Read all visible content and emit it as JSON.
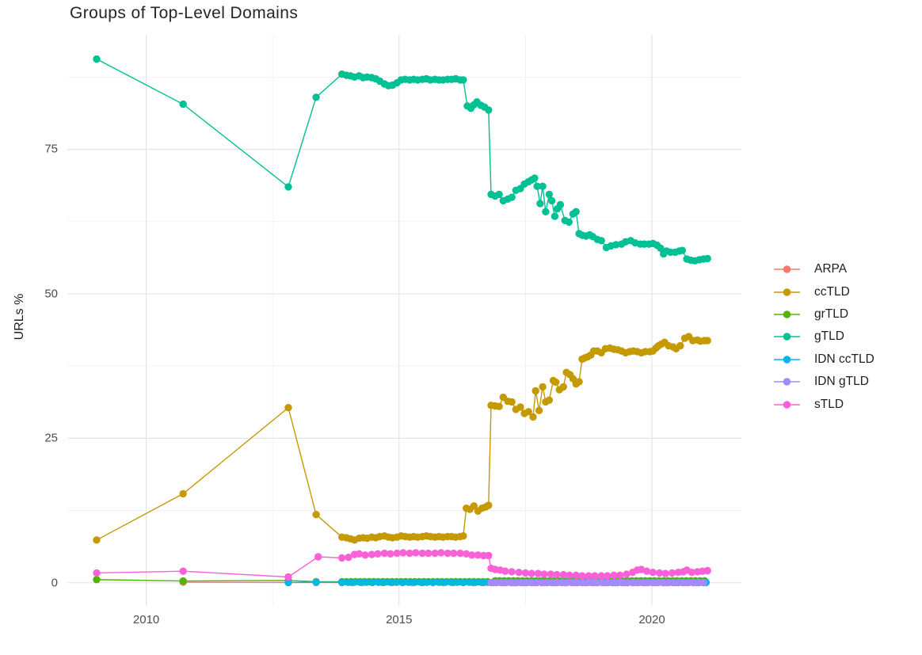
{
  "chart": {
    "title": "Groups of Top-Level Domains",
    "ylabel": "URLs %"
  },
  "chart_data": {
    "type": "line",
    "title": "Groups of Top-Level Domains",
    "xlabel": "",
    "ylabel": "URLs %",
    "grid": true,
    "legend_position": "right",
    "background": "#ffffff",
    "grid_major_color": "#e4e4e4",
    "grid_minor_color": "#f0f0f0",
    "x_axis": {
      "range": [
        2008.44,
        2021.77
      ],
      "ticks": [
        2010,
        2015,
        2020
      ],
      "tick_labels": [
        "2010",
        "2015",
        "2020"
      ],
      "minor_ticks": [
        2012.5,
        2017.5
      ]
    },
    "y_axis": {
      "range": [
        -4,
        94.8
      ],
      "ticks": [
        0,
        25,
        50,
        75
      ],
      "tick_labels": [
        "0",
        "25",
        "50",
        "75"
      ],
      "minor_ticks": [
        12.5,
        37.5,
        62.5,
        87.5
      ]
    },
    "series": [
      {
        "name": "ARPA",
        "color": "#F8766D",
        "points": [
          [
            2010.73,
            0.1
          ],
          [
            2012.81,
            0.06
          ],
          [
            2013.36,
            0.05
          ]
        ],
        "runs": [
          {
            "from": 2013.87,
            "to": 2021.1,
            "step": 0.2,
            "value": 0.04
          }
        ]
      },
      {
        "name": "ccTLD",
        "color": "#C49A00",
        "points": [
          [
            2009.02,
            7.4
          ],
          [
            2010.73,
            15.4
          ],
          [
            2012.81,
            30.3
          ],
          [
            2013.36,
            11.8
          ],
          [
            2013.87,
            7.9
          ],
          [
            2013.96,
            7.8
          ],
          [
            2014.04,
            7.6
          ],
          [
            2014.12,
            7.4
          ],
          [
            2014.21,
            7.7
          ],
          [
            2014.29,
            7.8
          ],
          [
            2014.37,
            7.7
          ],
          [
            2014.46,
            7.9
          ],
          [
            2014.54,
            7.8
          ],
          [
            2014.62,
            8.0
          ],
          [
            2014.71,
            8.1
          ],
          [
            2014.79,
            7.9
          ],
          [
            2014.87,
            7.8
          ],
          [
            2014.96,
            7.9
          ],
          [
            2015.04,
            8.1
          ],
          [
            2015.12,
            8.0
          ],
          [
            2015.21,
            7.9
          ],
          [
            2015.29,
            8.0
          ],
          [
            2015.37,
            7.9
          ],
          [
            2015.46,
            8.0
          ],
          [
            2015.54,
            8.1
          ],
          [
            2015.62,
            8.0
          ],
          [
            2015.71,
            7.9
          ],
          [
            2015.79,
            8.0
          ],
          [
            2015.87,
            7.9
          ],
          [
            2015.96,
            8.0
          ],
          [
            2016.04,
            8.0
          ],
          [
            2016.12,
            7.9
          ],
          [
            2016.21,
            8.0
          ],
          [
            2016.27,
            8.1
          ],
          [
            2016.33,
            12.9
          ],
          [
            2016.4,
            12.7
          ],
          [
            2016.48,
            13.3
          ],
          [
            2016.56,
            12.4
          ],
          [
            2016.64,
            12.9
          ],
          [
            2016.71,
            13.1
          ],
          [
            2016.77,
            13.4
          ],
          [
            2016.82,
            30.7
          ],
          [
            2016.9,
            30.6
          ],
          [
            2016.98,
            30.5
          ],
          [
            2017.06,
            32.1
          ],
          [
            2017.15,
            31.4
          ],
          [
            2017.23,
            31.3
          ],
          [
            2017.31,
            30.0
          ],
          [
            2017.4,
            30.4
          ],
          [
            2017.48,
            29.3
          ],
          [
            2017.56,
            29.6
          ],
          [
            2017.65,
            28.7
          ],
          [
            2017.7,
            33.2
          ],
          [
            2017.77,
            29.8
          ],
          [
            2017.84,
            33.9
          ],
          [
            2017.9,
            31.3
          ],
          [
            2017.97,
            31.6
          ],
          [
            2018.05,
            35.0
          ],
          [
            2018.1,
            34.7
          ],
          [
            2018.17,
            33.4
          ],
          [
            2018.25,
            33.9
          ],
          [
            2018.31,
            36.4
          ],
          [
            2018.38,
            36.0
          ],
          [
            2018.44,
            35.3
          ],
          [
            2018.5,
            34.4
          ],
          [
            2018.56,
            34.8
          ],
          [
            2018.62,
            38.7
          ],
          [
            2018.67,
            38.9
          ],
          [
            2018.73,
            39.1
          ],
          [
            2018.79,
            39.4
          ],
          [
            2018.85,
            40.1
          ],
          [
            2018.92,
            40.1
          ],
          [
            2019.0,
            39.8
          ],
          [
            2019.08,
            40.5
          ],
          [
            2019.17,
            40.6
          ],
          [
            2019.25,
            40.4
          ],
          [
            2019.33,
            40.3
          ],
          [
            2019.4,
            40.1
          ],
          [
            2019.48,
            39.8
          ],
          [
            2019.56,
            40.0
          ],
          [
            2019.63,
            40.1
          ],
          [
            2019.71,
            40.0
          ],
          [
            2019.79,
            39.8
          ],
          [
            2019.87,
            40.0
          ],
          [
            2019.96,
            40.0
          ],
          [
            2020.02,
            40.1
          ],
          [
            2020.08,
            40.6
          ],
          [
            2020.13,
            41.0
          ],
          [
            2020.19,
            41.3
          ],
          [
            2020.25,
            41.6
          ],
          [
            2020.33,
            41.0
          ],
          [
            2020.42,
            40.8
          ],
          [
            2020.48,
            40.5
          ],
          [
            2020.56,
            41.0
          ],
          [
            2020.65,
            42.3
          ],
          [
            2020.73,
            42.6
          ],
          [
            2020.81,
            41.9
          ],
          [
            2020.9,
            42.0
          ],
          [
            2020.96,
            41.8
          ],
          [
            2021.04,
            41.9
          ],
          [
            2021.1,
            41.9
          ]
        ]
      },
      {
        "name": "grTLD",
        "color": "#53B400",
        "points": [
          [
            2009.02,
            0.55
          ],
          [
            2010.73,
            0.3
          ],
          [
            2012.81,
            0.4
          ],
          [
            2013.36,
            0.2
          ]
        ],
        "runs": [
          {
            "from": 2013.87,
            "to": 2016.8,
            "step": 0.09,
            "value": 0.2
          },
          {
            "from": 2016.9,
            "to": 2021.1,
            "step": 0.09,
            "value": 0.35
          }
        ]
      },
      {
        "name": "gTLD",
        "color": "#00C094",
        "points": [
          [
            2009.02,
            90.6
          ],
          [
            2010.73,
            82.8
          ],
          [
            2012.81,
            68.5
          ],
          [
            2013.36,
            84.0
          ],
          [
            2013.87,
            88.0
          ],
          [
            2013.96,
            87.8
          ],
          [
            2014.04,
            87.7
          ],
          [
            2014.12,
            87.5
          ],
          [
            2014.21,
            87.7
          ],
          [
            2014.29,
            87.4
          ],
          [
            2014.37,
            87.5
          ],
          [
            2014.46,
            87.4
          ],
          [
            2014.54,
            87.2
          ],
          [
            2014.62,
            86.8
          ],
          [
            2014.71,
            86.3
          ],
          [
            2014.79,
            86.0
          ],
          [
            2014.87,
            86.1
          ],
          [
            2014.96,
            86.5
          ],
          [
            2015.04,
            87.0
          ],
          [
            2015.12,
            87.1
          ],
          [
            2015.21,
            87.0
          ],
          [
            2015.29,
            87.1
          ],
          [
            2015.37,
            87.0
          ],
          [
            2015.46,
            87.1
          ],
          [
            2015.54,
            87.2
          ],
          [
            2015.62,
            87.0
          ],
          [
            2015.71,
            87.1
          ],
          [
            2015.79,
            87.0
          ],
          [
            2015.87,
            87.0
          ],
          [
            2015.96,
            87.1
          ],
          [
            2016.04,
            87.1
          ],
          [
            2016.12,
            87.2
          ],
          [
            2016.21,
            87.0
          ],
          [
            2016.27,
            87.0
          ],
          [
            2016.35,
            82.5
          ],
          [
            2016.42,
            82.1
          ],
          [
            2016.48,
            82.7
          ],
          [
            2016.54,
            83.2
          ],
          [
            2016.62,
            82.6
          ],
          [
            2016.69,
            82.3
          ],
          [
            2016.77,
            81.8
          ],
          [
            2016.82,
            67.2
          ],
          [
            2016.9,
            66.9
          ],
          [
            2016.98,
            67.2
          ],
          [
            2017.06,
            66.1
          ],
          [
            2017.15,
            66.4
          ],
          [
            2017.23,
            66.7
          ],
          [
            2017.31,
            67.9
          ],
          [
            2017.4,
            68.2
          ],
          [
            2017.48,
            69.0
          ],
          [
            2017.56,
            69.4
          ],
          [
            2017.62,
            69.7
          ],
          [
            2017.68,
            70.0
          ],
          [
            2017.73,
            68.6
          ],
          [
            2017.79,
            65.6
          ],
          [
            2017.84,
            68.6
          ],
          [
            2017.9,
            64.2
          ],
          [
            2017.97,
            67.2
          ],
          [
            2018.02,
            66.1
          ],
          [
            2018.08,
            63.4
          ],
          [
            2018.13,
            64.7
          ],
          [
            2018.19,
            65.4
          ],
          [
            2018.28,
            62.7
          ],
          [
            2018.36,
            62.4
          ],
          [
            2018.44,
            63.8
          ],
          [
            2018.5,
            64.2
          ],
          [
            2018.56,
            60.4
          ],
          [
            2018.63,
            60.1
          ],
          [
            2018.7,
            60.0
          ],
          [
            2018.77,
            60.2
          ],
          [
            2018.83,
            59.9
          ],
          [
            2018.92,
            59.4
          ],
          [
            2019.0,
            59.2
          ],
          [
            2019.1,
            58.0
          ],
          [
            2019.19,
            58.3
          ],
          [
            2019.29,
            58.5
          ],
          [
            2019.4,
            58.6
          ],
          [
            2019.48,
            59.0
          ],
          [
            2019.58,
            59.2
          ],
          [
            2019.67,
            58.8
          ],
          [
            2019.77,
            58.6
          ],
          [
            2019.85,
            58.6
          ],
          [
            2019.94,
            58.6
          ],
          [
            2020.02,
            58.7
          ],
          [
            2020.1,
            58.4
          ],
          [
            2020.17,
            57.9
          ],
          [
            2020.23,
            56.9
          ],
          [
            2020.29,
            57.4
          ],
          [
            2020.37,
            57.2
          ],
          [
            2020.46,
            57.2
          ],
          [
            2020.54,
            57.4
          ],
          [
            2020.6,
            57.5
          ],
          [
            2020.69,
            56.0
          ],
          [
            2020.77,
            55.8
          ],
          [
            2020.85,
            55.7
          ],
          [
            2020.94,
            55.9
          ],
          [
            2021.02,
            56.0
          ],
          [
            2021.1,
            56.1
          ]
        ]
      },
      {
        "name": "IDN ccTLD",
        "color": "#00B6EB",
        "points": [
          [
            2012.81,
            0.05
          ],
          [
            2013.36,
            0.1
          ]
        ],
        "runs": [
          {
            "from": 2013.87,
            "to": 2021.1,
            "step": 0.12,
            "value": 0.08
          }
        ]
      },
      {
        "name": "IDN gTLD",
        "color": "#A58AFF",
        "points": [],
        "runs": [
          {
            "from": 2016.82,
            "to": 2021.1,
            "step": 0.1,
            "value": 0.02
          }
        ]
      },
      {
        "name": "sTLD",
        "color": "#FB61D7",
        "points": [
          [
            2009.02,
            1.7
          ],
          [
            2010.73,
            2.0
          ],
          [
            2012.81,
            1.0
          ],
          [
            2013.4,
            4.5
          ],
          [
            2013.87,
            4.3
          ],
          [
            2014.0,
            4.4
          ],
          [
            2014.12,
            4.9
          ],
          [
            2014.21,
            5.0
          ],
          [
            2014.33,
            4.8
          ],
          [
            2014.46,
            4.9
          ],
          [
            2014.58,
            5.0
          ],
          [
            2014.71,
            5.1
          ],
          [
            2014.83,
            5.0
          ],
          [
            2014.96,
            5.1
          ],
          [
            2015.08,
            5.2
          ],
          [
            2015.21,
            5.1
          ],
          [
            2015.33,
            5.2
          ],
          [
            2015.46,
            5.1
          ],
          [
            2015.58,
            5.1
          ],
          [
            2015.71,
            5.1
          ],
          [
            2015.83,
            5.2
          ],
          [
            2015.96,
            5.1
          ],
          [
            2016.08,
            5.1
          ],
          [
            2016.21,
            5.1
          ],
          [
            2016.33,
            5.0
          ],
          [
            2016.44,
            4.8
          ],
          [
            2016.56,
            4.8
          ],
          [
            2016.67,
            4.7
          ],
          [
            2016.77,
            4.7
          ],
          [
            2016.82,
            2.5
          ],
          [
            2016.9,
            2.3
          ],
          [
            2017.0,
            2.2
          ],
          [
            2017.1,
            2.0
          ],
          [
            2017.23,
            1.9
          ],
          [
            2017.37,
            1.8
          ],
          [
            2017.5,
            1.7
          ],
          [
            2017.62,
            1.6
          ],
          [
            2017.75,
            1.6
          ],
          [
            2017.87,
            1.5
          ],
          [
            2018.0,
            1.5
          ],
          [
            2018.12,
            1.4
          ],
          [
            2018.25,
            1.4
          ],
          [
            2018.37,
            1.3
          ],
          [
            2018.5,
            1.3
          ],
          [
            2018.62,
            1.2
          ],
          [
            2018.75,
            1.2
          ],
          [
            2018.87,
            1.2
          ],
          [
            2019.0,
            1.2
          ],
          [
            2019.12,
            1.2
          ],
          [
            2019.25,
            1.3
          ],
          [
            2019.37,
            1.3
          ],
          [
            2019.5,
            1.5
          ],
          [
            2019.62,
            1.8
          ],
          [
            2019.71,
            2.2
          ],
          [
            2019.79,
            2.3
          ],
          [
            2019.9,
            2.0
          ],
          [
            2020.02,
            1.8
          ],
          [
            2020.15,
            1.7
          ],
          [
            2020.27,
            1.6
          ],
          [
            2020.4,
            1.7
          ],
          [
            2020.52,
            1.8
          ],
          [
            2020.62,
            1.9
          ],
          [
            2020.69,
            2.2
          ],
          [
            2020.79,
            1.8
          ],
          [
            2020.9,
            1.9
          ],
          [
            2021.0,
            2.0
          ],
          [
            2021.1,
            2.1
          ]
        ]
      }
    ]
  }
}
